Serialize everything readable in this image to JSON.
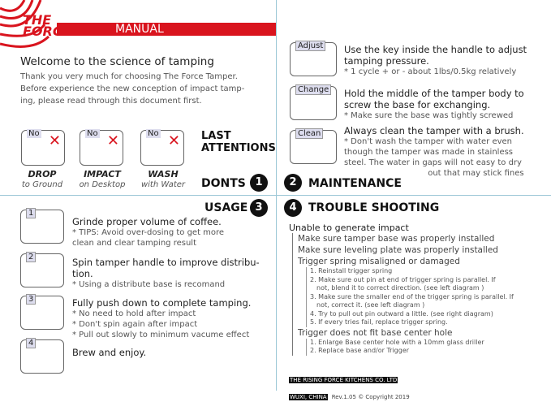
{
  "brand": {
    "logo": "THE FORCE",
    "title": "MANUAL",
    "color": "#d9141e"
  },
  "welcome": {
    "heading": "Welcome to the science of tamping",
    "lines": [
      "Thank you very much for choosing The Force Tamper.",
      "Before experience the new conception of impact tamp-",
      "ing, please read through this document first."
    ]
  },
  "donts": {
    "heading_line1": "LAST",
    "heading_line2": "ATTENTIONS",
    "section": "DONTS",
    "number": "1",
    "items": [
      {
        "tag": "No",
        "label": "DROP",
        "sub": "to Ground"
      },
      {
        "tag": "No",
        "label": "IMPACT",
        "sub": "on Desktop"
      },
      {
        "tag": "No",
        "label": "WASH",
        "sub": "with Water"
      }
    ]
  },
  "maintenance": {
    "section": "MAINTENANCE",
    "number": "2",
    "items": [
      {
        "tag": "Adjust",
        "lines": [
          "Use the key inside the handle to adjust",
          "tamping pressure."
        ],
        "notes": [
          "* 1 cycle + or - about 1lbs/0.5kg relatively"
        ]
      },
      {
        "tag": "Change",
        "lines": [
          "Hold the middle of the tamper body to",
          "screw the base for exchanging."
        ],
        "notes": [
          "* Make sure the base was tightly screwed"
        ]
      },
      {
        "tag": "Clean",
        "lines": [
          "Always clean the tamper with a brush."
        ],
        "notes": [
          "* Don't wash the tamper with water even",
          "though the tamper was made in stainless",
          "steel. The water in gaps will not easy to dry",
          "out that may stick fines"
        ]
      }
    ]
  },
  "usage": {
    "section": "USAGE",
    "number": "3",
    "steps": [
      {
        "n": "1",
        "lines": [
          "Grinde proper volume of coffee."
        ],
        "notes": [
          "* TIPS: Avoid over-dosing to get more",
          "clean and clear tamping result"
        ]
      },
      {
        "n": "2",
        "lines": [
          "Spin tamper handle to improve distribu-",
          "tion."
        ],
        "notes": [
          "* Using a distribute base is recomand"
        ]
      },
      {
        "n": "3",
        "lines": [
          "Fully push down to complete tamping."
        ],
        "notes": [
          "* No need to hold after impact",
          "* Don't spin again after impact",
          "* Pull out slowly to minimum vacume effect"
        ]
      },
      {
        "n": "4",
        "lines": [
          "Brew and enjoy."
        ],
        "notes": []
      }
    ]
  },
  "trouble": {
    "section": "TROUBLE SHOOTING",
    "number": "4",
    "title": "Unable to generate impact",
    "items": [
      "Make sure tamper base was properly installed",
      "Make sure leveling plate was properly installed",
      "Trigger spring misaligned or damaged"
    ],
    "spring": [
      "1. Reinstall trigger spring",
      "2. Make sure out pin at end of trigger spring is parallel. If",
      "not, blend it to correct direction. (see left diagram )",
      "3. Make sure the smaller end of the trigger spring is parallel. If",
      "not, correct it. (see left diagram )",
      "4. Try to pull out pin outward a little. (see right diagram)",
      "5. If every tries fail, replace trigger spring."
    ],
    "item4": "Trigger does not fit base center hole",
    "hole": [
      "1. Enlarge Base center hole with a 10mm glass driller",
      "2. Replace base and/or Trigger"
    ]
  },
  "footer": {
    "company": "THE RISING FORCE KITCHENS CO. LTD",
    "city": "WUXI, CHINA",
    "rev": "Rev.1.05 © Copyright 2019"
  }
}
